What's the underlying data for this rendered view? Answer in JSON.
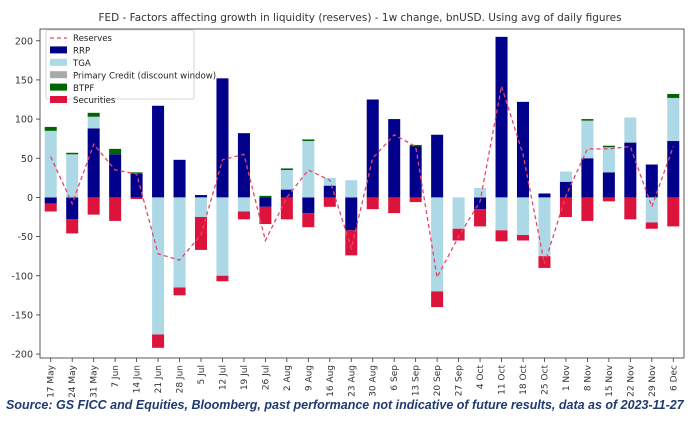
{
  "chart_data": {
    "type": "bar",
    "title": "FED - Factors affecting growth in liquidity (reserves) - 1w change, bnUSD. Using avg of daily figures",
    "xlabel": "",
    "ylabel": "",
    "ylim": [
      -205,
      215
    ],
    "yticks": [
      -200,
      -150,
      -100,
      -50,
      0,
      50,
      100,
      150,
      200
    ],
    "grid": false,
    "stacked": true,
    "legend_position": "top-left",
    "categories": [
      "17 May",
      "24 May",
      "31 May",
      "7 Jun",
      "14 Jun",
      "21 Jun",
      "28 Jun",
      "5 Jul",
      "12 Jul",
      "19 Jul",
      "26 Jul",
      "2 Aug",
      "9 Aug",
      "16 Aug",
      "23 Aug",
      "30 Aug",
      "6 Sep",
      "13 Sep",
      "20 Sep",
      "27 Sep",
      "4 Oct",
      "11 Oct",
      "18 Oct",
      "25 Oct",
      "1 Nov",
      "8 Nov",
      "15 Nov",
      "22 Nov",
      "29 Nov",
      "6 Dec"
    ],
    "series": [
      {
        "name": "RRP",
        "color": "#00008b",
        "values": [
          -8,
          -28,
          88,
          55,
          30,
          117,
          48,
          3,
          152,
          82,
          -12,
          10,
          -20,
          15,
          -42,
          125,
          100,
          65,
          80,
          0,
          -15,
          205,
          122,
          5,
          20,
          50,
          32,
          70,
          42,
          72
        ]
      },
      {
        "name": "TGA",
        "color": "#add8e6",
        "values": [
          85,
          55,
          15,
          0,
          0,
          -175,
          -115,
          -25,
          -100,
          -18,
          0,
          25,
          72,
          10,
          22,
          0,
          0,
          0,
          -120,
          -40,
          12,
          -42,
          -48,
          -75,
          13,
          48,
          32,
          32,
          -32,
          55
        ]
      },
      {
        "name": "Primary Credit (discount window)",
        "color": "#a9a9a9",
        "values": [
          0,
          0,
          0,
          0,
          0,
          0,
          0,
          0,
          0,
          0,
          0,
          0,
          0,
          0,
          0,
          0,
          0,
          0,
          0,
          0,
          0,
          0,
          0,
          0,
          0,
          0,
          0,
          0,
          0,
          0
        ]
      },
      {
        "name": "BTPF",
        "color": "#006400",
        "values": [
          5,
          2,
          5,
          7,
          2,
          0,
          0,
          0,
          0,
          0,
          2,
          2,
          2,
          0,
          0,
          0,
          0,
          2,
          0,
          0,
          0,
          0,
          0,
          0,
          0,
          2,
          2,
          0,
          0,
          5
        ]
      },
      {
        "name": "Securities",
        "color": "#dc143c",
        "values": [
          -10,
          -18,
          -22,
          -30,
          -2,
          -17,
          -10,
          -42,
          -7,
          -10,
          -22,
          -28,
          -18,
          -12,
          -32,
          -15,
          -20,
          -6,
          -20,
          -15,
          -22,
          -14,
          -7,
          -15,
          -25,
          -30,
          -5,
          -28,
          -8,
          -37
        ]
      }
    ],
    "line": {
      "name": "Reserves",
      "color": "#e8456b",
      "style": "dashed",
      "values": [
        52,
        -8,
        68,
        35,
        30,
        -72,
        -80,
        -48,
        48,
        55,
        -55,
        0,
        35,
        22,
        -65,
        50,
        80,
        65,
        -102,
        -50,
        -5,
        142,
        55,
        -85,
        2,
        62,
        62,
        65,
        -12,
        65
      ]
    }
  },
  "source_note": "Source: GS FICC and Equities, Bloomberg, past performance not indicative of future results, data as of 2023-11-27"
}
